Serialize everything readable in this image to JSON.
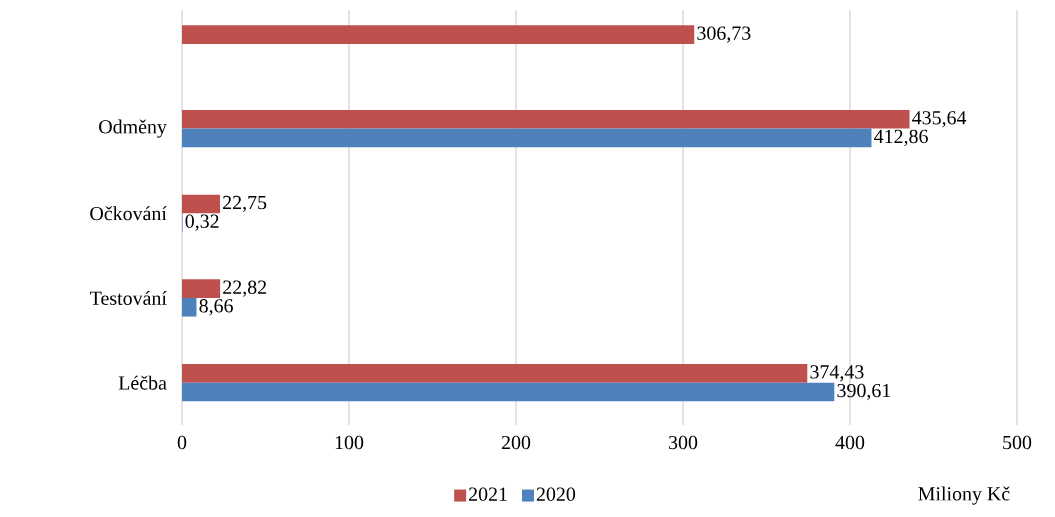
{
  "chart_data": {
    "type": "bar",
    "orientation": "horizontal",
    "xlabel": "Miliony Kč",
    "categories": [
      null,
      "Odměny",
      "Očkování",
      "Testování",
      "Léčba"
    ],
    "series": [
      {
        "name": "2021",
        "color": "#c0504d",
        "values": [
          306.73,
          435.64,
          22.75,
          22.82,
          374.43
        ],
        "value_labels": [
          "306,73",
          "435,64",
          "22,75",
          "22,82",
          "374,43"
        ]
      },
      {
        "name": "2020",
        "color": "#4f81bd",
        "values": [
          null,
          412.86,
          0.32,
          8.66,
          390.61
        ],
        "value_labels": [
          null,
          "412,86",
          "0,32",
          "8,66",
          "390,61"
        ]
      }
    ],
    "xlim": [
      0,
      500
    ],
    "xticks": [
      0,
      100,
      200,
      300,
      400,
      500
    ],
    "grid": "x",
    "legend": "bottom"
  }
}
